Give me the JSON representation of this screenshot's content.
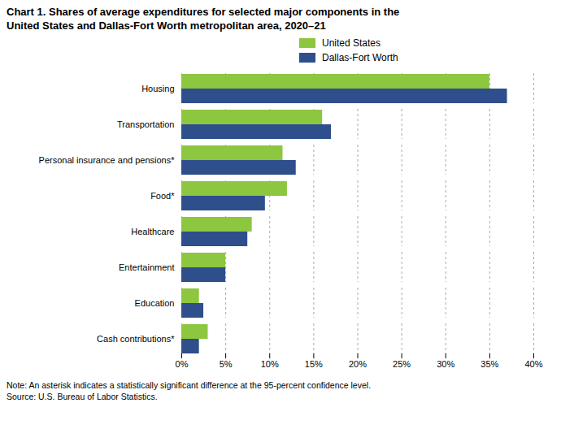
{
  "chart_data": {
    "type": "bar",
    "orientation": "horizontal",
    "title": "Chart 1. Shares of average expenditures for selected major components in the\nUnited States and Dallas-Fort Worth metropolitan area, 2020–21",
    "categories": [
      "Housing",
      "Transportation",
      "Personal insurance and pensions*",
      "Food*",
      "Healthcare",
      "Entertainment",
      "Education",
      "Cash contributions*"
    ],
    "series": [
      {
        "name": "United States",
        "color": "#8DC63F",
        "values": [
          35.0,
          16.0,
          11.5,
          12.0,
          8.0,
          5.0,
          2.0,
          3.0
        ]
      },
      {
        "name": "Dallas-Fort Worth",
        "color": "#2E4E8C",
        "values": [
          37.0,
          17.0,
          13.0,
          9.5,
          7.5,
          5.0,
          2.5,
          2.0
        ]
      }
    ],
    "xlim": [
      0,
      40
    ],
    "xticks": [
      {
        "value": 0,
        "label": "0%"
      },
      {
        "value": 5,
        "label": "5%"
      },
      {
        "value": 10,
        "label": "10%"
      },
      {
        "value": 15,
        "label": "15%"
      },
      {
        "value": 20,
        "label": "20%"
      },
      {
        "value": 25,
        "label": "25%"
      },
      {
        "value": 30,
        "label": "30%"
      },
      {
        "value": 35,
        "label": "35%"
      },
      {
        "value": 40,
        "label": "40%"
      }
    ],
    "grid": true,
    "legend": "top",
    "note": "Note: An asterisk indicates a statistically significant difference at the 95-percent confidence level.",
    "source": "Source: U.S. Bureau of Labor Statistics."
  }
}
